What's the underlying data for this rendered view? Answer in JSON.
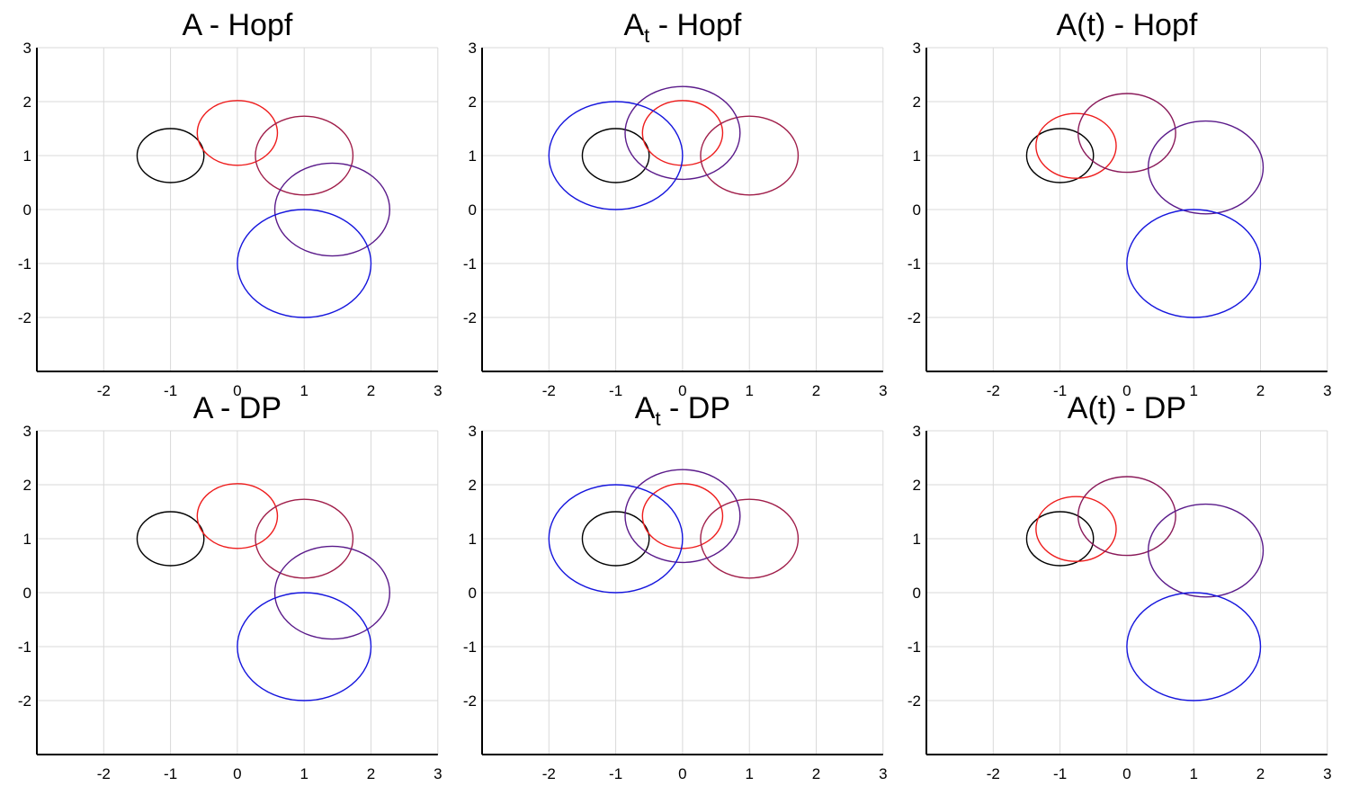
{
  "chart_data": [
    {
      "type": "line",
      "title": {
        "base": "A",
        "sub": "",
        "suffix": " - Hopf"
      },
      "xlim": [
        -3,
        3
      ],
      "ylim": [
        -3,
        3
      ],
      "xticks": [
        -2,
        -1,
        0,
        1,
        2,
        3
      ],
      "yticks": [
        -2,
        -1,
        0,
        1,
        2,
        3
      ],
      "grid": true,
      "series": [
        {
          "name": "black",
          "color": "#000000",
          "center": [
            -1,
            1
          ],
          "radii": [
            0.5,
            0.5
          ]
        },
        {
          "name": "red",
          "color": "#ee1c1c",
          "center": [
            0,
            1.42
          ],
          "radii": [
            0.6,
            0.6
          ]
        },
        {
          "name": "crimson",
          "color": "#a01e4a",
          "center": [
            1,
            1
          ],
          "radii": [
            0.73,
            0.73
          ]
        },
        {
          "name": "purple",
          "color": "#5a1a8a",
          "center": [
            1.42,
            0
          ],
          "radii": [
            0.86,
            0.86
          ]
        },
        {
          "name": "blue",
          "color": "#1515dd",
          "center": [
            1,
            -1
          ],
          "radii": [
            1,
            1
          ]
        }
      ]
    },
    {
      "type": "line",
      "title": {
        "base": "A",
        "sub": "t",
        "suffix": " - Hopf"
      },
      "xlim": [
        -3,
        3
      ],
      "ylim": [
        -3,
        3
      ],
      "xticks": [
        -2,
        -1,
        0,
        1,
        2,
        3
      ],
      "yticks": [
        -2,
        -1,
        0,
        1,
        2,
        3
      ],
      "grid": true,
      "series": [
        {
          "name": "black",
          "color": "#000000",
          "center": [
            -1,
            1
          ],
          "radii": [
            0.5,
            0.5
          ]
        },
        {
          "name": "red",
          "color": "#ee1c1c",
          "center": [
            0,
            1.42
          ],
          "radii": [
            0.6,
            0.6
          ]
        },
        {
          "name": "crimson",
          "color": "#a01e4a",
          "center": [
            1,
            1
          ],
          "radii": [
            0.73,
            0.73
          ]
        },
        {
          "name": "purple",
          "color": "#5a1a8a",
          "center": [
            0,
            1.42
          ],
          "radii": [
            0.86,
            0.86
          ]
        },
        {
          "name": "blue",
          "color": "#1515dd",
          "center": [
            -1,
            1
          ],
          "radii": [
            1,
            1
          ]
        }
      ]
    },
    {
      "type": "line",
      "title": {
        "base": "A(t)",
        "sub": "",
        "suffix": " - Hopf"
      },
      "xlim": [
        -3,
        3
      ],
      "ylim": [
        -3,
        3
      ],
      "xticks": [
        -2,
        -1,
        0,
        1,
        2,
        3
      ],
      "yticks": [
        -2,
        -1,
        0,
        1,
        2,
        3
      ],
      "grid": true,
      "series": [
        {
          "name": "black",
          "color": "#000000",
          "center": [
            -1,
            1
          ],
          "radii": [
            0.5,
            0.5
          ]
        },
        {
          "name": "red",
          "color": "#ee1c1c",
          "center": [
            -0.76,
            1.18
          ],
          "radii": [
            0.6,
            0.6
          ]
        },
        {
          "name": "crimson",
          "color": "#8a1a5a",
          "center": [
            0,
            1.42
          ],
          "radii": [
            0.73,
            0.73
          ]
        },
        {
          "name": "purple",
          "color": "#5a1a8a",
          "center": [
            1.18,
            0.78
          ],
          "radii": [
            0.86,
            0.86
          ]
        },
        {
          "name": "blue",
          "color": "#1515dd",
          "center": [
            1,
            -1
          ],
          "radii": [
            1,
            1
          ]
        }
      ]
    },
    {
      "type": "line",
      "title": {
        "base": "A",
        "sub": "",
        "suffix": " - DP"
      },
      "xlim": [
        -3,
        3
      ],
      "ylim": [
        -3,
        3
      ],
      "xticks": [
        -2,
        -1,
        0,
        1,
        2,
        3
      ],
      "yticks": [
        -2,
        -1,
        0,
        1,
        2,
        3
      ],
      "grid": true,
      "series": [
        {
          "name": "black",
          "color": "#000000",
          "center": [
            -1,
            1
          ],
          "radii": [
            0.5,
            0.5
          ]
        },
        {
          "name": "red",
          "color": "#ee1c1c",
          "center": [
            0,
            1.42
          ],
          "radii": [
            0.6,
            0.6
          ]
        },
        {
          "name": "crimson",
          "color": "#a01e4a",
          "center": [
            1,
            1
          ],
          "radii": [
            0.73,
            0.73
          ]
        },
        {
          "name": "purple",
          "color": "#5a1a8a",
          "center": [
            1.42,
            0
          ],
          "radii": [
            0.86,
            0.86
          ]
        },
        {
          "name": "blue",
          "color": "#1515dd",
          "center": [
            1,
            -1
          ],
          "radii": [
            1,
            1
          ]
        }
      ]
    },
    {
      "type": "line",
      "title": {
        "base": "A",
        "sub": "t",
        "suffix": " - DP"
      },
      "xlim": [
        -3,
        3
      ],
      "ylim": [
        -3,
        3
      ],
      "xticks": [
        -2,
        -1,
        0,
        1,
        2,
        3
      ],
      "yticks": [
        -2,
        -1,
        0,
        1,
        2,
        3
      ],
      "grid": true,
      "series": [
        {
          "name": "black",
          "color": "#000000",
          "center": [
            -1,
            1
          ],
          "radii": [
            0.5,
            0.5
          ]
        },
        {
          "name": "red",
          "color": "#ee1c1c",
          "center": [
            0,
            1.42
          ],
          "radii": [
            0.6,
            0.6
          ]
        },
        {
          "name": "crimson",
          "color": "#a01e4a",
          "center": [
            1,
            1
          ],
          "radii": [
            0.73,
            0.73
          ]
        },
        {
          "name": "purple",
          "color": "#5a1a8a",
          "center": [
            0,
            1.42
          ],
          "radii": [
            0.86,
            0.86
          ]
        },
        {
          "name": "blue",
          "color": "#1515dd",
          "center": [
            -1,
            1
          ],
          "radii": [
            1,
            1
          ]
        }
      ]
    },
    {
      "type": "line",
      "title": {
        "base": "A(t)",
        "sub": "",
        "suffix": " - DP"
      },
      "xlim": [
        -3,
        3
      ],
      "ylim": [
        -3,
        3
      ],
      "xticks": [
        -2,
        -1,
        0,
        1,
        2,
        3
      ],
      "yticks": [
        -2,
        -1,
        0,
        1,
        2,
        3
      ],
      "grid": true,
      "series": [
        {
          "name": "black",
          "color": "#000000",
          "center": [
            -1,
            1
          ],
          "radii": [
            0.5,
            0.5
          ]
        },
        {
          "name": "red",
          "color": "#ee1c1c",
          "center": [
            -0.76,
            1.18
          ],
          "radii": [
            0.6,
            0.6
          ]
        },
        {
          "name": "crimson",
          "color": "#8a1a5a",
          "center": [
            0,
            1.42
          ],
          "radii": [
            0.73,
            0.73
          ]
        },
        {
          "name": "purple",
          "color": "#5a1a8a",
          "center": [
            1.18,
            0.78
          ],
          "radii": [
            0.86,
            0.86
          ]
        },
        {
          "name": "blue",
          "color": "#1515dd",
          "center": [
            1,
            -1
          ],
          "radii": [
            1,
            1
          ]
        }
      ]
    }
  ]
}
